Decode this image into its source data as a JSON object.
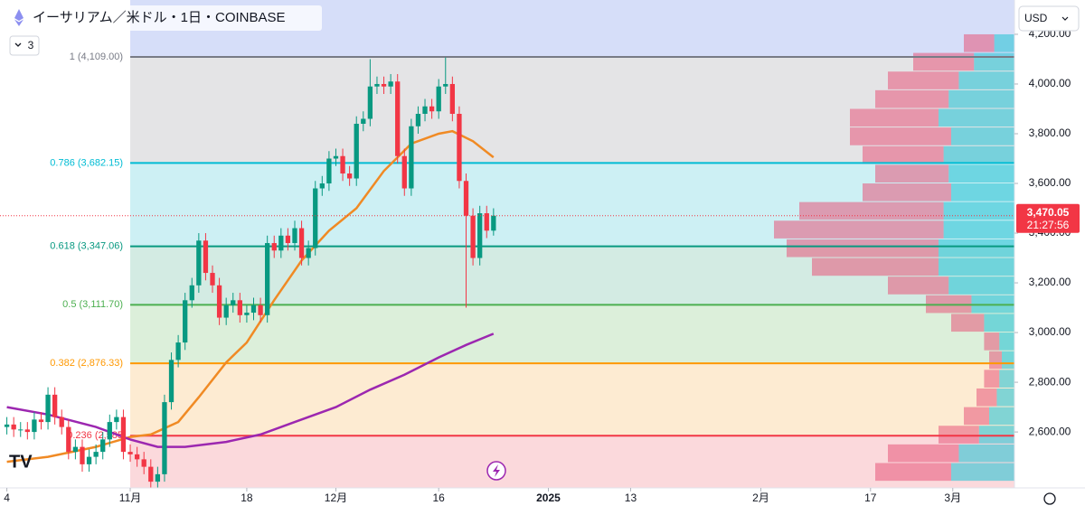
{
  "ui": {
    "currency": "USD",
    "indicators": "3"
  },
  "chart_data": {
    "type": "candlestick",
    "title": "イーサリアム／米ドル・1日・COINBASE",
    "x": [
      "2024-10-14",
      "2024-10-15",
      "2024-10-16",
      "2024-10-17",
      "2024-10-18",
      "2024-10-19",
      "2024-10-20",
      "2024-10-21",
      "2024-10-22",
      "2024-10-23",
      "2024-10-24",
      "2024-10-25",
      "2024-10-26",
      "2024-10-27",
      "2024-10-28",
      "2024-10-29",
      "2024-10-30",
      "2024-10-31",
      "2024-11-01",
      "2024-11-02",
      "2024-11-03",
      "2024-11-04",
      "2024-11-05",
      "2024-11-06",
      "2024-11-07",
      "2024-11-08",
      "2024-11-09",
      "2024-11-10",
      "2024-11-11",
      "2024-11-12",
      "2024-11-13",
      "2024-11-14",
      "2024-11-15",
      "2024-11-16",
      "2024-11-17",
      "2024-11-18",
      "2024-11-19",
      "2024-11-20",
      "2024-11-21",
      "2024-11-22",
      "2024-11-23",
      "2024-11-24",
      "2024-11-25",
      "2024-11-26",
      "2024-11-27",
      "2024-11-28",
      "2024-11-29",
      "2024-11-30",
      "2024-12-01",
      "2024-12-02",
      "2024-12-03",
      "2024-12-04",
      "2024-12-05",
      "2024-12-06",
      "2024-12-07",
      "2024-12-08",
      "2024-12-09",
      "2024-12-10",
      "2024-12-11",
      "2024-12-12",
      "2024-12-13",
      "2024-12-14",
      "2024-12-15",
      "2024-12-16",
      "2024-12-17",
      "2024-12-18",
      "2024-12-19",
      "2024-12-20",
      "2024-12-21",
      "2024-12-22",
      "2024-12-23",
      "2024-12-24"
    ],
    "open": [
      2620,
      2630,
      2610,
      2610,
      2600,
      2650,
      2640,
      2750,
      2660,
      2620,
      2520,
      2540,
      2470,
      2500,
      2520,
      2570,
      2640,
      2660,
      2520,
      2510,
      2490,
      2460,
      2400,
      2430,
      2720,
      2890,
      2960,
      3130,
      3190,
      3370,
      3240,
      3190,
      3060,
      3110,
      3130,
      3070,
      3080,
      3110,
      3070,
      3360,
      3330,
      3390,
      3360,
      3420,
      3300,
      3340,
      3580,
      3600,
      3700,
      3710,
      3640,
      3620,
      3840,
      3860,
      3990,
      4000,
      3990,
      4010,
      3710,
      3580,
      3830,
      3880,
      3910,
      3890,
      3990,
      4000,
      3880,
      3610,
      3470,
      3300,
      3480,
      3410
    ],
    "high": [
      2660,
      2660,
      2640,
      2640,
      2680,
      2680,
      2780,
      2780,
      2690,
      2650,
      2570,
      2570,
      2530,
      2550,
      2600,
      2670,
      2690,
      2690,
      2550,
      2540,
      2520,
      2490,
      2460,
      2750,
      2920,
      2990,
      3160,
      3220,
      3400,
      3400,
      3270,
      3220,
      3140,
      3160,
      3160,
      3110,
      3140,
      3140,
      3390,
      3390,
      3420,
      3420,
      3450,
      3450,
      3370,
      3610,
      3630,
      3730,
      3740,
      3740,
      3670,
      3870,
      3890,
      4100,
      4030,
      4030,
      4040,
      4040,
      3740,
      3860,
      3910,
      3940,
      3940,
      4020,
      4107,
      4030,
      3910,
      3640,
      3500,
      3510,
      3510,
      3500
    ],
    "low": [
      2590,
      2580,
      2580,
      2570,
      2570,
      2610,
      2610,
      2630,
      2590,
      2490,
      2490,
      2440,
      2440,
      2470,
      2490,
      2540,
      2610,
      2490,
      2480,
      2460,
      2430,
      2360,
      2370,
      2400,
      2690,
      2860,
      2930,
      3100,
      3160,
      3210,
      3160,
      3030,
      3030,
      3080,
      3040,
      3040,
      3050,
      3040,
      3040,
      3300,
      3300,
      3330,
      3330,
      3270,
      3270,
      3310,
      3550,
      3570,
      3670,
      3610,
      3590,
      3590,
      3810,
      3830,
      3960,
      3960,
      3960,
      3680,
      3550,
      3550,
      3800,
      3850,
      3860,
      3860,
      3960,
      3850,
      3580,
      3100,
      3270,
      3270,
      3380,
      3390
    ],
    "close": [
      2630,
      2610,
      2610,
      2600,
      2650,
      2640,
      2750,
      2660,
      2620,
      2520,
      2540,
      2470,
      2500,
      2520,
      2570,
      2640,
      2660,
      2520,
      2510,
      2490,
      2460,
      2400,
      2430,
      2720,
      2890,
      2960,
      3130,
      3190,
      3370,
      3240,
      3190,
      3060,
      3110,
      3130,
      3070,
      3080,
      3110,
      3070,
      3360,
      3330,
      3390,
      3360,
      3420,
      3300,
      3340,
      3580,
      3600,
      3700,
      3710,
      3640,
      3620,
      3840,
      3860,
      3990,
      4000,
      3990,
      4010,
      3710,
      3580,
      3830,
      3880,
      3910,
      3890,
      3990,
      4000,
      3880,
      3610,
      3470,
      3300,
      3480,
      3410,
      3470.05
    ],
    "up_color": "#089981",
    "down_color": "#f23645",
    "xlim": [
      "2024-10-13",
      "2025-03-10"
    ],
    "xticks": [
      {
        "value": "2024-10-14",
        "label": "4"
      },
      {
        "value": "2024-11-01",
        "label": "11月"
      },
      {
        "value": "2024-11-18",
        "label": "18"
      },
      {
        "value": "2024-12-01",
        "label": "12月"
      },
      {
        "value": "2024-12-16",
        "label": "16"
      },
      {
        "value": "2025-01-01",
        "label": "2025"
      },
      {
        "value": "2025-01-13",
        "label": "13"
      },
      {
        "value": "2025-02-01",
        "label": "2月"
      },
      {
        "value": "2025-02-17",
        "label": "17"
      },
      {
        "value": "2025-03-01",
        "label": "3月"
      }
    ],
    "ylim": [
      2375,
      4338
    ],
    "yticks": [
      {
        "value": 2600,
        "label": "2,600.00"
      },
      {
        "value": 2800,
        "label": "2,800.00"
      },
      {
        "value": 3000,
        "label": "3,000.00"
      },
      {
        "value": 3200,
        "label": "3,200.00"
      },
      {
        "value": 3400,
        "label": "3,400.00"
      },
      {
        "value": 3600,
        "label": "3,600.00"
      },
      {
        "value": 3800,
        "label": "3,800.00"
      },
      {
        "value": 4000,
        "label": "4,000.00"
      },
      {
        "value": 4200,
        "label": "4,200.00"
      }
    ],
    "last_price": {
      "value": 3470.05,
      "label": "3,470.05",
      "countdown": "21:27:56",
      "color": "#f23645"
    },
    "fib": {
      "start": "2024-11-01",
      "above_zone": "#d6def9",
      "levels": [
        {
          "value": 4109,
          "label": "1 (4,109.00)",
          "color": "#787b86",
          "zone": "#e4e4e6"
        },
        {
          "value": 3682.15,
          "label": "0.786 (3,682.15)",
          "color": "#00bcd4",
          "zone": "#cdf0f4"
        },
        {
          "value": 3347.06,
          "label": "0.618 (3,347.06)",
          "color": "#089981",
          "zone": "#d3ebe3"
        },
        {
          "value": 3111.7,
          "label": "0.5 (3,111.70)",
          "color": "#4caf50",
          "zone": "#dcefda"
        },
        {
          "value": 2876.33,
          "label": "0.382 (2,876.33)",
          "color": "#ff9800",
          "zone": "#fdebd2"
        },
        {
          "value": 2585,
          "label": "0.236 (2,585",
          "color": "#f23645",
          "zone": "#fbd9dc"
        }
      ]
    },
    "ma": [
      {
        "color": "#f08a24",
        "x": [
          "2024-10-14",
          "2024-10-20",
          "2024-10-27",
          "2024-11-01",
          "2024-11-04",
          "2024-11-08",
          "2024-11-11",
          "2024-11-15",
          "2024-11-18",
          "2024-11-22",
          "2024-11-26",
          "2024-11-30",
          "2024-12-04",
          "2024-12-08",
          "2024-12-12",
          "2024-12-16",
          "2024-12-18",
          "2024-12-21",
          "2024-12-24"
        ],
        "values": [
          2480,
          2500,
          2540,
          2580,
          2590,
          2640,
          2740,
          2880,
          2960,
          3130,
          3290,
          3410,
          3500,
          3650,
          3760,
          3800,
          3810,
          3770,
          3705
        ]
      },
      {
        "color": "#9c27b0",
        "x": [
          "2024-10-14",
          "2024-10-20",
          "2024-10-27",
          "2024-11-01",
          "2024-11-05",
          "2024-11-09",
          "2024-11-15",
          "2024-11-20",
          "2024-11-25",
          "2024-12-01",
          "2024-12-06",
          "2024-12-11",
          "2024-12-16",
          "2024-12-20",
          "2024-12-24"
        ],
        "values": [
          2700,
          2670,
          2620,
          2570,
          2540,
          2540,
          2560,
          2590,
          2640,
          2700,
          2770,
          2830,
          2900,
          2950,
          2995
        ]
      }
    ],
    "volume_profile": {
      "bins": [
        2400,
        2475,
        2550,
        2625,
        2700,
        2775,
        2850,
        2925,
        3000,
        3075,
        3150,
        3225,
        3300,
        3375,
        3450,
        3525,
        3600,
        3675,
        3750,
        3825,
        3900,
        3975,
        4050,
        4125,
        4200
      ],
      "up": [
        25,
        22,
        14,
        10,
        7,
        6,
        5,
        6,
        12,
        17,
        26,
        30,
        30,
        28,
        28,
        25,
        26,
        28,
        25,
        30,
        26,
        22,
        16,
        8
      ],
      "down": [
        30,
        28,
        16,
        10,
        8,
        6,
        5,
        6,
        13,
        18,
        24,
        50,
        60,
        67,
        57,
        35,
        29,
        32,
        40,
        35,
        29,
        28,
        24,
        12
      ],
      "xlim": [
        0,
        100
      ],
      "up_color": "#2ec4d6",
      "down_color": "#e8557a"
    }
  }
}
